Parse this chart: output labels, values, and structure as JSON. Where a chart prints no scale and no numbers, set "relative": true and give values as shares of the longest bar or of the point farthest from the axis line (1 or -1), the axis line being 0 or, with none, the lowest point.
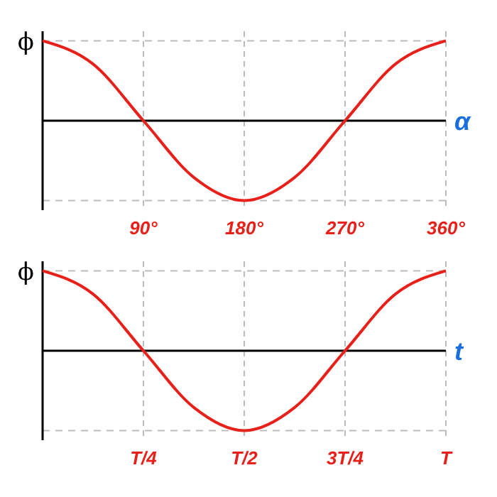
{
  "chart_data": [
    {
      "type": "line",
      "xlabel": "α",
      "ylabel": "ϕ",
      "relative": true,
      "x": [
        0,
        45,
        90,
        135,
        180,
        225,
        270,
        315,
        360
      ],
      "series": [
        {
          "color": "#e8201a",
          "values": [
            1,
            0.71,
            0,
            -0.71,
            -1,
            -0.71,
            0,
            0.71,
            1
          ]
        }
      ],
      "xlim": [
        0,
        360
      ],
      "xticks": [
        {
          "value": 90,
          "label": "90°"
        },
        {
          "value": 180,
          "label": "180°"
        },
        {
          "value": 270,
          "label": "270°"
        },
        {
          "value": 360,
          "label": "360°"
        }
      ],
      "grid": true
    },
    {
      "type": "line",
      "xlabel": "t",
      "ylabel": "ϕ",
      "relative": true,
      "categories": [
        null,
        null,
        "T/4",
        null,
        "T/2",
        null,
        "3T/4",
        null,
        "T"
      ],
      "series": [
        {
          "color": "#e8201a",
          "values": [
            1,
            0.71,
            0,
            -0.71,
            -1,
            -0.71,
            0,
            0.71,
            1
          ]
        }
      ],
      "grid": true
    }
  ]
}
